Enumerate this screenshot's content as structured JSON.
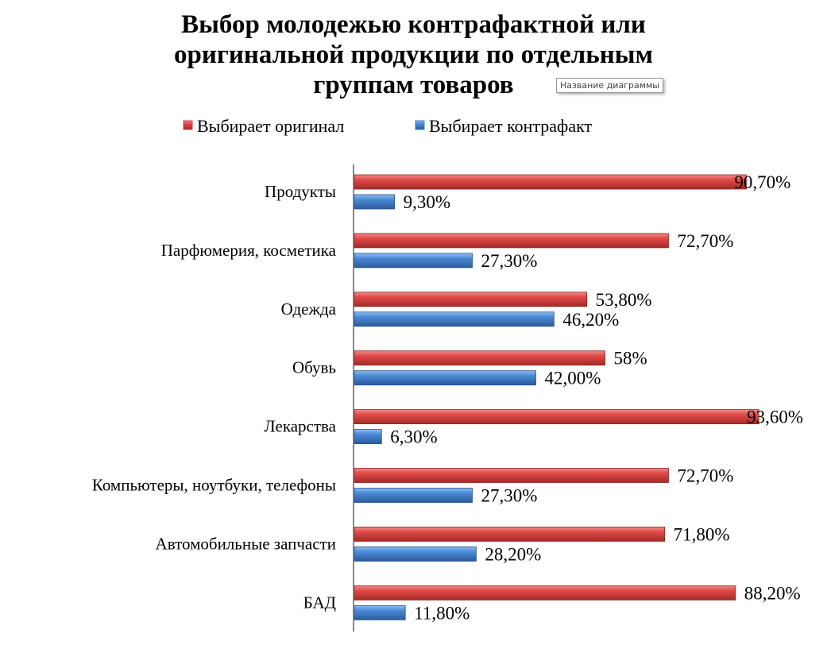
{
  "tooltip": "Название диаграммы",
  "chart_data": {
    "type": "bar",
    "orientation": "horizontal",
    "title": "Выбор молодежью контрафактной или оригинальной продукции по отдельным группам товаров",
    "title_lines": [
      "Выбор молодежью контрафактной или",
      "оригинальной продукции по отдельным",
      "группам товаров"
    ],
    "categories": [
      "Продукты",
      "Парфюмерия, косметика",
      "Одежда",
      "Обувь",
      "Лекарства",
      "Компьютеры, ноутбуки, телефоны",
      "Автомобильные запчасти",
      "БАД"
    ],
    "series": [
      {
        "name": "Выбирает оригинал",
        "color": "#d9413f",
        "values": [
          90.7,
          72.7,
          53.8,
          58,
          93.6,
          72.7,
          71.8,
          88.2
        ],
        "labels": [
          "90,70%",
          "72,70%",
          "53,80%",
          "58%",
          "93,60%",
          "72,70%",
          "71,80%",
          "88,20%"
        ]
      },
      {
        "name": "Выбирает контрафакт",
        "color": "#3d7cc9",
        "values": [
          9.3,
          27.3,
          46.2,
          42.0,
          6.3,
          27.3,
          28.2,
          11.8
        ],
        "labels": [
          "9,30%",
          "27,30%",
          "46,20%",
          "42,00%",
          "6,30%",
          "27,30%",
          "28,20%",
          "11,80%"
        ]
      }
    ],
    "xlim": [
      0,
      100
    ],
    "legend": "top",
    "grid": false
  }
}
